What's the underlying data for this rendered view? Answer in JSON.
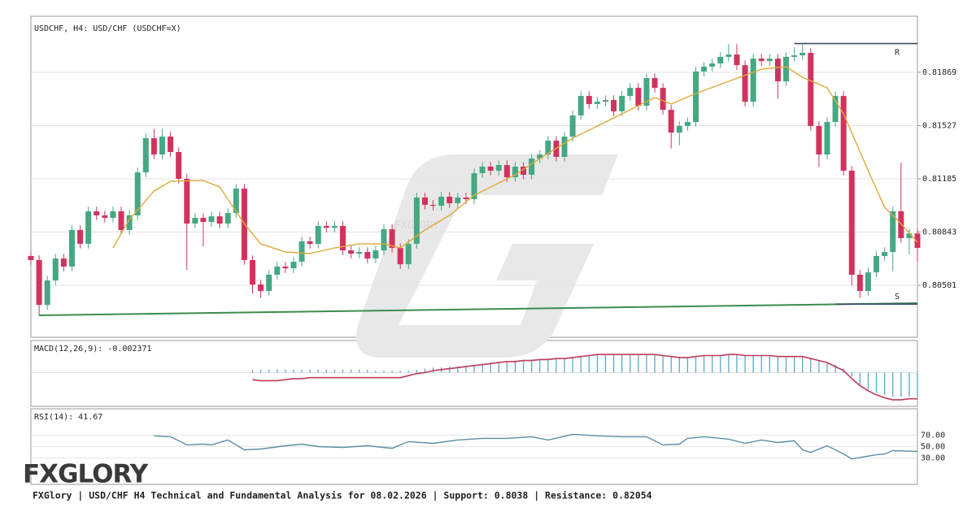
{
  "chart_data": {
    "type": "candlestick",
    "title": "USDCHF, H4: USD/CHF (USDCHF=X)",
    "ylim": [
      0.80167,
      0.82229
    ],
    "yticks": [
      0.80501,
      0.80843,
      0.81185,
      0.81527,
      0.81869
    ],
    "grid": true,
    "colors": {
      "up": "#45a882",
      "down": "#d1335c"
    },
    "candles": [
      [
        0.80689,
        0.80719,
        0.80633,
        0.80663
      ],
      [
        0.80663,
        0.80693,
        0.80308,
        0.80375
      ],
      [
        0.80375,
        0.80562,
        0.80345,
        0.80532
      ],
      [
        0.80532,
        0.80703,
        0.80502,
        0.80673
      ],
      [
        0.80673,
        0.80703,
        0.80591,
        0.80621
      ],
      [
        0.80621,
        0.80886,
        0.80591,
        0.80856
      ],
      [
        0.80856,
        0.80886,
        0.80737,
        0.80767
      ],
      [
        0.80767,
        0.81006,
        0.80737,
        0.80976
      ],
      [
        0.80976,
        0.81006,
        0.8092,
        0.8095
      ],
      [
        0.8095,
        0.8098,
        0.80904,
        0.80934
      ],
      [
        0.80934,
        0.81006,
        0.80904,
        0.80976
      ],
      [
        0.80976,
        0.81006,
        0.80826,
        0.80856
      ],
      [
        0.80856,
        0.8098,
        0.80826,
        0.8095
      ],
      [
        0.8095,
        0.81256,
        0.8092,
        0.81226
      ],
      [
        0.81226,
        0.81476,
        0.81196,
        0.81446
      ],
      [
        0.81446,
        0.81506,
        0.81311,
        0.81341
      ],
      [
        0.81341,
        0.81506,
        0.81311,
        0.81456
      ],
      [
        0.81456,
        0.81486,
        0.81327,
        0.81357
      ],
      [
        0.81357,
        0.81387,
        0.81155,
        0.81185
      ],
      [
        0.81185,
        0.81215,
        0.806,
        0.80897
      ],
      [
        0.80897,
        0.80964,
        0.80867,
        0.80934
      ],
      [
        0.80934,
        0.80964,
        0.8075,
        0.80908
      ],
      [
        0.80908,
        0.80974,
        0.80878,
        0.80944
      ],
      [
        0.80944,
        0.80974,
        0.80867,
        0.80897
      ],
      [
        0.80897,
        0.80995,
        0.80867,
        0.80965
      ],
      [
        0.80965,
        0.81152,
        0.80935,
        0.81122
      ],
      [
        0.81122,
        0.81152,
        0.80633,
        0.80663
      ],
      [
        0.80663,
        0.80693,
        0.8045,
        0.80506
      ],
      [
        0.80506,
        0.80536,
        0.8042,
        0.80464
      ],
      [
        0.80464,
        0.80599,
        0.80434,
        0.80569
      ],
      [
        0.80569,
        0.80651,
        0.80539,
        0.80621
      ],
      [
        0.80621,
        0.80651,
        0.8058,
        0.8061
      ],
      [
        0.8061,
        0.80682,
        0.8058,
        0.80652
      ],
      [
        0.80652,
        0.80813,
        0.80622,
        0.80783
      ],
      [
        0.80783,
        0.80813,
        0.80737,
        0.80767
      ],
      [
        0.80767,
        0.80912,
        0.80737,
        0.80882
      ],
      [
        0.80882,
        0.80912,
        0.80841,
        0.80871
      ],
      [
        0.80871,
        0.80912,
        0.80841,
        0.80882
      ],
      [
        0.80882,
        0.80912,
        0.80695,
        0.80725
      ],
      [
        0.80725,
        0.80755,
        0.80674,
        0.80704
      ],
      [
        0.80704,
        0.80745,
        0.80674,
        0.80715
      ],
      [
        0.80715,
        0.80745,
        0.80643,
        0.80673
      ],
      [
        0.80673,
        0.80755,
        0.80643,
        0.80725
      ],
      [
        0.80725,
        0.80891,
        0.80695,
        0.80861
      ],
      [
        0.80861,
        0.80891,
        0.80711,
        0.80741
      ],
      [
        0.80741,
        0.80771,
        0.80606,
        0.80636
      ],
      [
        0.80636,
        0.80797,
        0.80606,
        0.80767
      ],
      [
        0.80767,
        0.81095,
        0.80737,
        0.81065
      ],
      [
        0.81065,
        0.81095,
        0.80988,
        0.81018
      ],
      [
        0.81018,
        0.81048,
        0.80982,
        0.81012
      ],
      [
        0.81012,
        0.811,
        0.80982,
        0.8107
      ],
      [
        0.8107,
        0.811,
        0.80998,
        0.81028
      ],
      [
        0.81028,
        0.81095,
        0.80998,
        0.81065
      ],
      [
        0.81065,
        0.81095,
        0.81024,
        0.81054
      ],
      [
        0.81054,
        0.81251,
        0.81024,
        0.81221
      ],
      [
        0.81221,
        0.81293,
        0.81191,
        0.81263
      ],
      [
        0.81263,
        0.81293,
        0.81207,
        0.81237
      ],
      [
        0.81237,
        0.81303,
        0.81207,
        0.81273
      ],
      [
        0.81273,
        0.81303,
        0.81165,
        0.81195
      ],
      [
        0.81195,
        0.81293,
        0.81165,
        0.81263
      ],
      [
        0.81263,
        0.81293,
        0.81181,
        0.81211
      ],
      [
        0.81211,
        0.81345,
        0.81181,
        0.81315
      ],
      [
        0.81315,
        0.81371,
        0.81285,
        0.81341
      ],
      [
        0.81341,
        0.8146,
        0.81311,
        0.8143
      ],
      [
        0.8143,
        0.8146,
        0.81296,
        0.81326
      ],
      [
        0.81326,
        0.81486,
        0.81296,
        0.81456
      ],
      [
        0.81456,
        0.81622,
        0.81426,
        0.81592
      ],
      [
        0.81592,
        0.81747,
        0.81562,
        0.81717
      ],
      [
        0.81717,
        0.81747,
        0.81635,
        0.81665
      ],
      [
        0.81665,
        0.8171,
        0.81635,
        0.8168
      ],
      [
        0.8168,
        0.81721,
        0.8165,
        0.81691
      ],
      [
        0.81691,
        0.81721,
        0.81588,
        0.81618
      ],
      [
        0.81618,
        0.81747,
        0.81588,
        0.81717
      ],
      [
        0.81717,
        0.81799,
        0.81687,
        0.81769
      ],
      [
        0.81769,
        0.81799,
        0.81624,
        0.81654
      ],
      [
        0.81654,
        0.81862,
        0.81624,
        0.81832
      ],
      [
        0.81832,
        0.81862,
        0.81739,
        0.81769
      ],
      [
        0.81769,
        0.81799,
        0.81598,
        0.81628
      ],
      [
        0.81628,
        0.81658,
        0.8138,
        0.81482
      ],
      [
        0.81482,
        0.81554,
        0.814,
        0.81524
      ],
      [
        0.81524,
        0.8158,
        0.81494,
        0.8155
      ],
      [
        0.8155,
        0.81904,
        0.8152,
        0.81874
      ],
      [
        0.81874,
        0.81935,
        0.81844,
        0.81905
      ],
      [
        0.81905,
        0.81956,
        0.81875,
        0.81926
      ],
      [
        0.81926,
        0.81998,
        0.81896,
        0.81968
      ],
      [
        0.81968,
        0.8205,
        0.81938,
        0.81983
      ],
      [
        0.81983,
        0.8205,
        0.81885,
        0.81915
      ],
      [
        0.81915,
        0.81945,
        0.8165,
        0.8168
      ],
      [
        0.8168,
        0.81987,
        0.8165,
        0.81957
      ],
      [
        0.81957,
        0.81987,
        0.81911,
        0.81941
      ],
      [
        0.81941,
        0.81987,
        0.81911,
        0.81957
      ],
      [
        0.81957,
        0.81987,
        0.817,
        0.81811
      ],
      [
        0.81811,
        0.81998,
        0.81781,
        0.81968
      ],
      [
        0.81968,
        0.8203,
        0.81938,
        0.81978
      ],
      [
        0.81978,
        0.82054,
        0.81948,
        0.81994
      ],
      [
        0.81994,
        0.82024,
        0.81494,
        0.81524
      ],
      [
        0.81524,
        0.81554,
        0.8126,
        0.81341
      ],
      [
        0.81341,
        0.8158,
        0.81311,
        0.8155
      ],
      [
        0.8155,
        0.81747,
        0.8152,
        0.81717
      ],
      [
        0.81717,
        0.81747,
        0.81207,
        0.81237
      ],
      [
        0.81237,
        0.81267,
        0.805,
        0.80569
      ],
      [
        0.80569,
        0.80599,
        0.8042,
        0.80464
      ],
      [
        0.80464,
        0.80614,
        0.80434,
        0.80584
      ],
      [
        0.80584,
        0.80719,
        0.80554,
        0.80689
      ],
      [
        0.80689,
        0.80745,
        0.80659,
        0.80715
      ],
      [
        0.80715,
        0.81006,
        0.8059,
        0.80976
      ],
      [
        0.80976,
        0.81289,
        0.80774,
        0.80804
      ],
      [
        0.80804,
        0.80864,
        0.807,
        0.80834
      ],
      [
        0.80834,
        0.80864,
        0.8065,
        0.80741
      ]
    ],
    "ma": {
      "color": "#e0a93b",
      "x": [
        10,
        12,
        15,
        17,
        21,
        23,
        26,
        28,
        31,
        34,
        37,
        40,
        43,
        45,
        48,
        51,
        54,
        56,
        59,
        62,
        66,
        70,
        73,
        76,
        78,
        81,
        85,
        89,
        92,
        94,
        97,
        99,
        102,
        104,
        106,
        108
      ],
      "values": [
        0.80741,
        0.80924,
        0.81106,
        0.81169,
        0.81174,
        0.81132,
        0.80897,
        0.80767,
        0.80715,
        0.80704,
        0.80741,
        0.80767,
        0.80767,
        0.80741,
        0.80856,
        0.8095,
        0.8108,
        0.81132,
        0.81211,
        0.81315,
        0.81446,
        0.8155,
        0.81628,
        0.81707,
        0.81665,
        0.81733,
        0.81811,
        0.81889,
        0.81905,
        0.81837,
        0.81769,
        0.81602,
        0.81237,
        0.81002,
        0.80897,
        0.80777
      ]
    },
    "trendline": {
      "color": "#3d8c4e",
      "x": [
        1,
        108
      ],
      "values": [
        0.80308,
        0.80386
      ]
    },
    "resistance": {
      "label": "R",
      "value": 0.82054,
      "x": [
        93,
        108
      ],
      "color": "#3b4a6b"
    },
    "support": {
      "label": "S",
      "value": 0.8038,
      "x": [
        98,
        108
      ],
      "color": "#3b4a6b"
    },
    "watermark": "FXGLORY",
    "macd": {
      "title": "MACD(12,26,9): -0.002371",
      "ylim": [
        -0.00335,
        0.00319
      ],
      "colors": {
        "histogram": "#5aa9c8",
        "signal": "#c0395b"
      },
      "histogram": [
        null,
        null,
        null,
        null,
        null,
        null,
        null,
        null,
        null,
        null,
        null,
        null,
        null,
        null,
        null,
        null,
        null,
        null,
        null,
        null,
        null,
        null,
        null,
        null,
        null,
        null,
        null,
        0.0003,
        0.0003,
        0.0003,
        0.0003,
        0.0003,
        0.0003,
        0.0003,
        0.0003,
        0.0003,
        0.0003,
        0.0003,
        0.0003,
        0.0003,
        0.0003,
        0.0003,
        0.0002,
        0.0002,
        0.0002,
        0.0002,
        0.0002,
        0.0003,
        0.0004,
        0.0005,
        0.0005,
        0.0006,
        0.0006,
        0.0007,
        0.0008,
        0.0009,
        0.001,
        0.0011,
        0.0011,
        0.0012,
        0.0012,
        0.0013,
        0.0013,
        0.0014,
        0.0014,
        0.0014,
        0.0015,
        0.0016,
        0.0017,
        0.0018,
        0.0018,
        0.0018,
        0.0018,
        0.0018,
        0.0018,
        0.0018,
        0.0018,
        0.0017,
        0.0016,
        0.0015,
        0.0015,
        0.0016,
        0.0017,
        0.0017,
        0.0017,
        0.0018,
        0.0018,
        0.0017,
        0.0017,
        0.0017,
        0.0017,
        0.0016,
        0.0016,
        0.0016,
        0.0016,
        0.0014,
        0.0012,
        0.001,
        0.0008,
        0.0004,
        -0.0004,
        -0.0012,
        -0.0017,
        -0.002,
        -0.0022,
        -0.0024,
        -0.0024,
        -0.0024,
        -0.002371
      ],
      "signal": [
        null,
        null,
        null,
        null,
        null,
        null,
        null,
        null,
        null,
        null,
        null,
        null,
        null,
        null,
        null,
        null,
        null,
        null,
        null,
        null,
        null,
        null,
        null,
        null,
        null,
        null,
        null,
        -0.0007,
        -0.0008,
        -0.0008,
        -0.0008,
        -0.0007,
        -0.0006,
        -0.0006,
        -0.0005,
        -0.0005,
        -0.0005,
        -0.0005,
        -0.0005,
        -0.0005,
        -0.0005,
        -0.0005,
        -0.0005,
        -0.0005,
        -0.0005,
        -0.0005,
        -0.0003,
        -0.0001,
        0,
        0.0002,
        0.0003,
        0.0004,
        0.0005,
        0.0006,
        0.0007,
        0.0008,
        0.0009,
        0.001,
        0.0011,
        0.0011,
        0.0012,
        0.0012,
        0.0013,
        0.0013,
        0.0014,
        0.0014,
        0.0015,
        0.0016,
        0.0017,
        0.0018,
        0.0018,
        0.0018,
        0.0018,
        0.0018,
        0.0018,
        0.0018,
        0.0018,
        0.0017,
        0.0016,
        0.0015,
        0.0015,
        0.0016,
        0.0017,
        0.0017,
        0.0017,
        0.0018,
        0.0018,
        0.0017,
        0.0017,
        0.0017,
        0.0017,
        0.0016,
        0.0016,
        0.0016,
        0.0016,
        0.0014,
        0.0012,
        0.001,
        0.0006,
        0.0002,
        -0.0006,
        -0.0013,
        -0.0018,
        -0.0022,
        -0.0025,
        -0.0027,
        -0.0027,
        -0.0026,
        -0.0026
      ]
    },
    "rsi": {
      "title": "RSI(14): 41.67",
      "ylim": [
        -15.7,
        115.7
      ],
      "yticks": [
        {
          "value": 30,
          "label": "30.00"
        },
        {
          "value": 50,
          "label": "50.00"
        },
        {
          "value": 70,
          "label": "70.00"
        }
      ],
      "color": "#5b8fa8",
      "x": [
        15,
        17,
        19,
        21,
        22,
        24,
        26,
        28,
        31,
        33,
        35,
        38,
        41,
        44,
        46,
        49,
        52,
        55,
        58,
        61,
        63,
        66,
        69,
        72,
        75,
        77,
        79,
        80,
        82,
        85,
        87,
        89,
        91,
        93,
        94,
        95,
        97,
        99,
        100,
        103,
        104,
        105,
        108
      ],
      "values": [
        68.6,
        67.1,
        52.9,
        54.3,
        52.9,
        61.4,
        44.3,
        45.7,
        51.4,
        54.3,
        50,
        48.6,
        51.4,
        47.1,
        58.6,
        55.7,
        61.4,
        64.3,
        64.3,
        67.1,
        61.4,
        71.4,
        68.6,
        67.1,
        67.1,
        52.9,
        54.3,
        64.3,
        67.1,
        62.9,
        55.7,
        61.4,
        57.1,
        60,
        44.3,
        40,
        51.4,
        37.1,
        28.6,
        35.7,
        37.1,
        42.9,
        41.67
      ]
    }
  },
  "logo": "FXGLORY",
  "footer": "FXGlory | USD/CHF H4 Technical and Fundamental Analysis for 08.02.2026 | Support: 0.8038 | Resistance: 0.82054"
}
